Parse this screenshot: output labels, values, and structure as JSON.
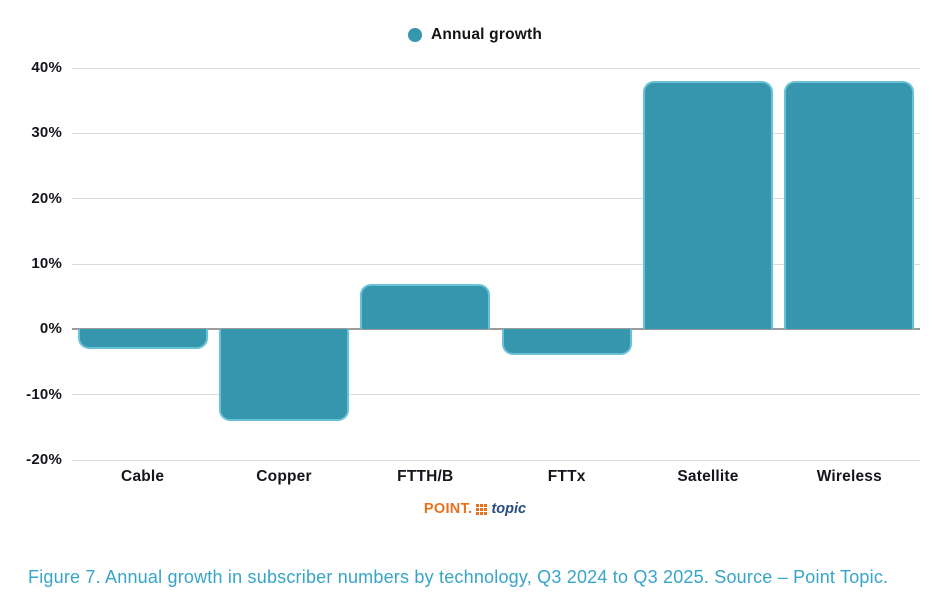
{
  "legend": {
    "label": "Annual growth"
  },
  "chart_data": {
    "type": "bar",
    "title": "",
    "xlabel": "",
    "ylabel": "",
    "categories": [
      "Cable",
      "Copper",
      "FTTH/B",
      "FTTx",
      "Satellite",
      "Wireless"
    ],
    "values": [
      -3,
      -14,
      7,
      -4,
      38,
      38
    ],
    "series_name": "Annual growth",
    "ylim": [
      -20,
      40
    ],
    "ytick_step": 10,
    "ytick_labels": [
      "40%",
      "30%",
      "20%",
      "10%",
      "0%",
      "-10%",
      "-20%"
    ],
    "grid": true,
    "legend_position": "top",
    "bar_color": "#3596AD",
    "bar_border_color": "#6AC2D6",
    "gridline_color": "#DBDBDB",
    "zero_line_color": "#9B9B9B",
    "axis_label_color": "#15151C"
  },
  "logo": {
    "text_point": "POINT.",
    "text_topic": "topic",
    "point_color": "#E8711F",
    "topic_color": "#2A4A80",
    "dots_color": "#E8711F"
  },
  "caption": {
    "text": "Figure 7. Annual growth in subscriber numbers by technology, Q3 2024 to Q3 2025. Source – Point Topic.",
    "color": "#36A5C8"
  }
}
